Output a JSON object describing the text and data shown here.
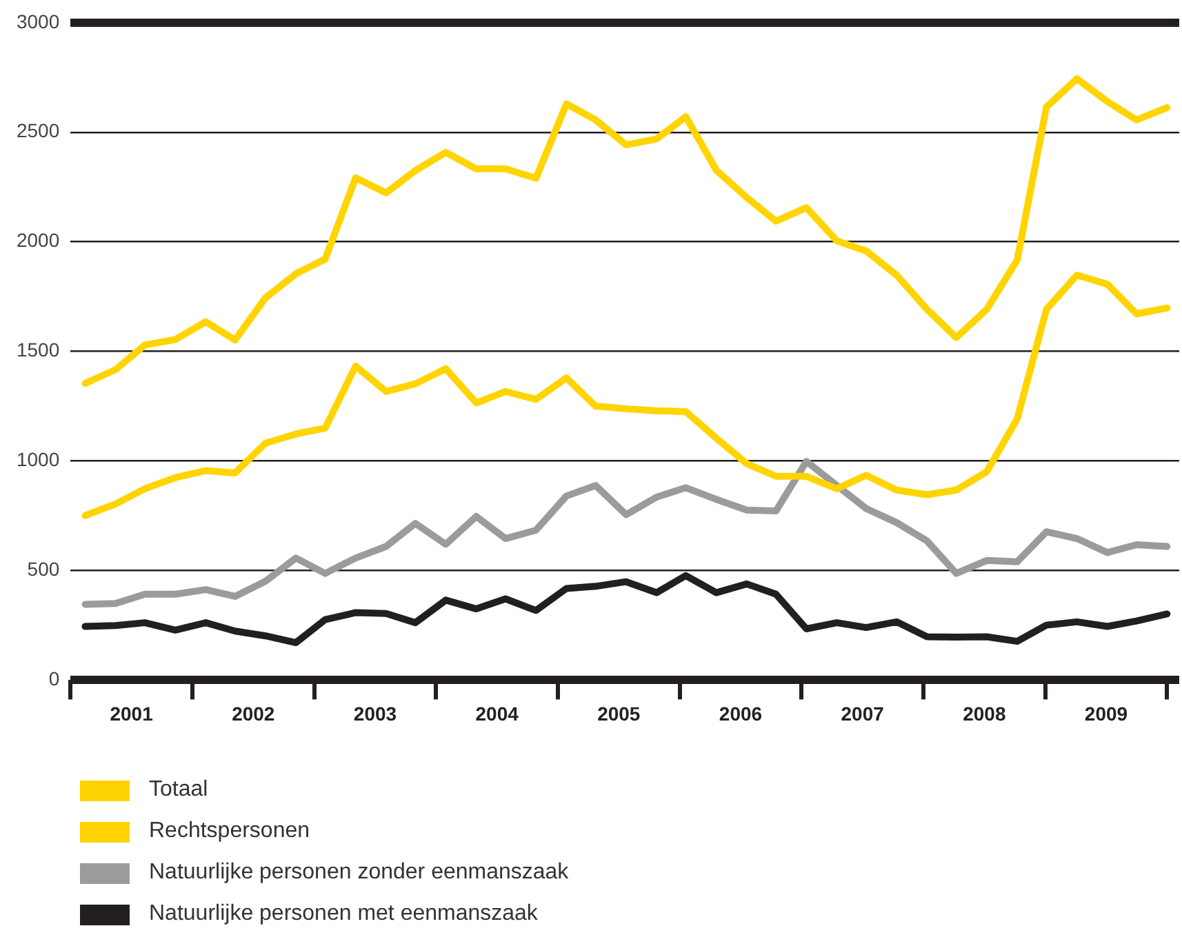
{
  "chart_data": {
    "type": "line",
    "x": [
      2001.12,
      2001.37,
      2001.61,
      2001.86,
      2002.11,
      2002.35,
      2002.6,
      2002.85,
      2003.09,
      2003.34,
      2003.59,
      2003.83,
      2004.08,
      2004.33,
      2004.57,
      2004.82,
      2005.07,
      2005.31,
      2005.56,
      2005.81,
      2006.05,
      2006.3,
      2006.55,
      2006.79,
      2007.04,
      2007.29,
      2007.53,
      2007.78,
      2008.03,
      2008.27,
      2008.52,
      2008.77,
      2009.01,
      2009.26,
      2009.51,
      2009.75,
      2010.0
    ],
    "series": [
      {
        "name": "Totaal",
        "color": "#ffd400",
        "values": [
          1354,
          1417,
          1529,
          1554,
          1635,
          1552,
          1744,
          1854,
          1921,
          2292,
          2223,
          2325,
          2408,
          2333,
          2333,
          2290,
          2629,
          2556,
          2442,
          2469,
          2571,
          2327,
          2202,
          2094,
          2156,
          2004,
          1958,
          1848,
          1692,
          1563,
          1692,
          1917,
          2615,
          2744,
          2640,
          2556,
          2612
        ]
      },
      {
        "name": "Rechtspersonen",
        "color": "#ffd400",
        "values": [
          751,
          804,
          873,
          924,
          956,
          945,
          1081,
          1123,
          1150,
          1433,
          1317,
          1352,
          1421,
          1265,
          1317,
          1281,
          1379,
          1250,
          1238,
          1229,
          1225,
          1104,
          988,
          930,
          930,
          873,
          935,
          867,
          846,
          867,
          951,
          1192,
          1692,
          1848,
          1806,
          1671,
          1698
        ]
      },
      {
        "name": "Natuurlijke personen zonder eenmanszaak",
        "color": "#9b9b9b",
        "values": [
          346,
          350,
          392,
          392,
          413,
          382,
          451,
          557,
          487,
          557,
          610,
          715,
          620,
          747,
          646,
          684,
          840,
          888,
          755,
          835,
          878,
          825,
          776,
          772,
          998,
          888,
          783,
          719,
          635,
          487,
          546,
          540,
          677,
          646,
          582,
          618,
          610
        ]
      },
      {
        "name": "Natuurlijke personen met eenmanszaak",
        "color": "#231f20",
        "values": [
          245,
          249,
          262,
          228,
          262,
          224,
          202,
          171,
          276,
          308,
          304,
          262,
          365,
          325,
          371,
          318,
          418,
          428,
          449,
          399,
          477,
          399,
          439,
          392,
          234,
          262,
          240,
          266,
          198,
          196,
          198,
          177,
          251,
          266,
          245,
          270,
          302
        ]
      }
    ],
    "xlim": [
      2001,
      2010.1
    ],
    "xticks": [
      {
        "value": 2001,
        "label": null
      },
      {
        "value": 2001.5,
        "label": "2001"
      },
      {
        "value": 2002,
        "label": null
      },
      {
        "value": 2002.5,
        "label": "2002"
      },
      {
        "value": 2003,
        "label": null
      },
      {
        "value": 2003.5,
        "label": "2003"
      },
      {
        "value": 2004,
        "label": null
      },
      {
        "value": 2004.5,
        "label": "2004"
      },
      {
        "value": 2005,
        "label": null
      },
      {
        "value": 2005.5,
        "label": "2005"
      },
      {
        "value": 2006,
        "label": null
      },
      {
        "value": 2006.5,
        "label": "2006"
      },
      {
        "value": 2007,
        "label": null
      },
      {
        "value": 2007.5,
        "label": "2007"
      },
      {
        "value": 2008,
        "label": null
      },
      {
        "value": 2008.5,
        "label": "2008"
      },
      {
        "value": 2009,
        "label": null
      },
      {
        "value": 2009.5,
        "label": "2009"
      },
      {
        "value": 2010,
        "label": null
      }
    ],
    "ylim": [
      0,
      3000
    ],
    "yticks": [
      0,
      500,
      1000,
      1500,
      2000,
      2500,
      3000
    ],
    "grid": "y",
    "legend": "bottom",
    "marker": "none",
    "line_style": "solid"
  }
}
